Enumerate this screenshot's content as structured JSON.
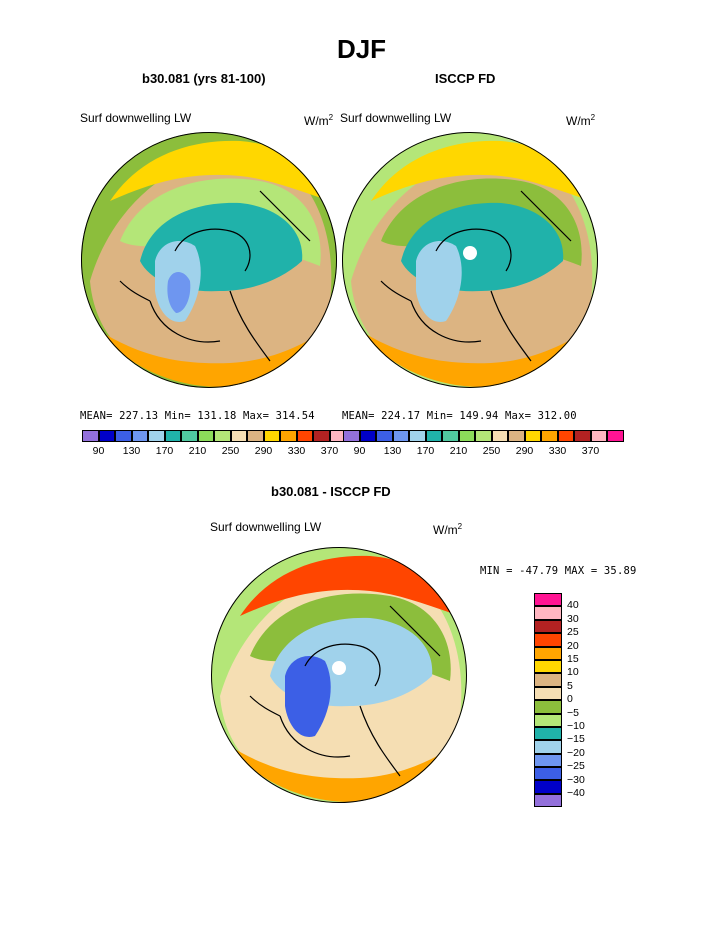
{
  "figure": {
    "season": "DJF"
  },
  "panels": [
    {
      "title": "b30.081 (yrs 81-100)",
      "variable": "Surf downwelling LW",
      "units_base": "W/m",
      "units_exp": "2",
      "stats": "MEAN= 227.13  Min= 131.18  Max= 314.54"
    },
    {
      "title": "ISCCP FD",
      "variable": "Surf downwelling LW",
      "units_base": "W/m",
      "units_exp": "2",
      "stats": "MEAN= 224.17  Min= 149.94  Max= 312.00"
    },
    {
      "title": "b30.081 - ISCCP FD",
      "variable": "Surf downwelling LW",
      "units_base": "W/m",
      "units_exp": "2",
      "stats": "MIN = -47.79 MAX =  35.89"
    }
  ],
  "colorbar_abs": {
    "colors": [
      "#9370db",
      "#0000c8",
      "#3c5fe6",
      "#6e96f0",
      "#a0d2eb",
      "#20b2aa",
      "#50c8a0",
      "#8cdc5a",
      "#b4e678",
      "#f5deb3",
      "#dcb482",
      "#ffd700",
      "#ffa500",
      "#ff4500",
      "#b22222",
      "#ffb6c1",
      "#ff1493"
    ],
    "tick_labels": [
      "90",
      "130",
      "170",
      "210",
      "250",
      "290",
      "330",
      "370"
    ]
  },
  "colorbar_diff": {
    "colors": [
      "#ff1493",
      "#ffb6c1",
      "#b22222",
      "#ff4500",
      "#ffa500",
      "#ffd700",
      "#dcb482",
      "#f5deb3",
      "#8cbe3c",
      "#b4e678",
      "#20b2aa",
      "#a0d2eb",
      "#6e96f0",
      "#3c5fe6",
      "#0000c8",
      "#9370db"
    ],
    "tick_labels": [
      "40",
      "30",
      "25",
      "20",
      "15",
      "10",
      "5",
      "0",
      "−5",
      "−10",
      "−15",
      "−20",
      "−25",
      "−30",
      "−40"
    ]
  },
  "map_fields": {
    "panel1": {
      "background": "#8cbe3c",
      "layers": [
        {
          "color": "#dcb482",
          "shape": "band-outer"
        },
        {
          "color": "#ffa500",
          "shape": "rim-south"
        },
        {
          "color": "#ffd700",
          "shape": "rim-north"
        },
        {
          "color": "#b4e678",
          "shape": "mid-north"
        },
        {
          "color": "#20b2aa",
          "shape": "core"
        },
        {
          "color": "#a0d2eb",
          "shape": "greenland-core"
        },
        {
          "color": "#6e96f0",
          "shape": "greenland-min"
        }
      ]
    },
    "panel2": {
      "background": "#b4e678",
      "layers": [
        {
          "color": "#dcb482",
          "shape": "band-outer"
        },
        {
          "color": "#ffa500",
          "shape": "rim-south"
        },
        {
          "color": "#ffd700",
          "shape": "rim-north"
        },
        {
          "color": "#8cbe3c",
          "shape": "mid-north"
        },
        {
          "color": "#20b2aa",
          "shape": "core"
        },
        {
          "color": "#a0d2eb",
          "shape": "greenland-core"
        },
        {
          "color": "#ffffff",
          "shape": "pole-hole"
        }
      ]
    },
    "panel3": {
      "background": "#b4e678",
      "layers": [
        {
          "color": "#f5deb3",
          "shape": "band-outer"
        },
        {
          "color": "#ffa500",
          "shape": "rim-south"
        },
        {
          "color": "#ff4500",
          "shape": "rim-north"
        },
        {
          "color": "#8cbe3c",
          "shape": "mid-north"
        },
        {
          "color": "#a0d2eb",
          "shape": "core"
        },
        {
          "color": "#3c5fe6",
          "shape": "greenland-core"
        },
        {
          "color": "#ffffff",
          "shape": "pole-hole"
        }
      ]
    }
  }
}
